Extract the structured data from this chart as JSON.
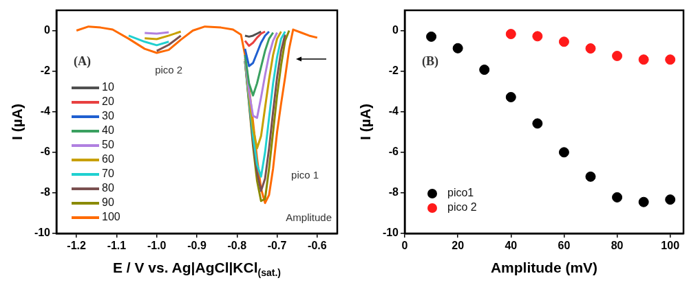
{
  "chart_data": [
    {
      "type": "line",
      "xlabel": "E / V vs. Ag|AgCl|KCl$_{(sat.)}$",
      "ylabel": "I (µA)",
      "x": [
        -1.2,
        -1.17,
        -1.14,
        -1.11,
        -1.07,
        -1.03,
        -1.0,
        -0.97,
        -0.94,
        -0.91,
        -0.88,
        -0.84,
        -0.81,
        -0.79,
        -0.78,
        -0.77,
        -0.76,
        -0.75,
        -0.74,
        -0.73,
        -0.72,
        -0.71,
        -0.7,
        -0.69,
        -0.68,
        -0.67,
        -0.66,
        -0.64,
        -0.62,
        -0.6
      ],
      "series": [
        {
          "name": "10",
          "color": "#505050",
          "values": [
            null,
            null,
            null,
            null,
            null,
            null,
            null,
            null,
            null,
            null,
            null,
            null,
            null,
            null,
            -0.25,
            -0.3,
            -0.25,
            -0.15,
            -0.05,
            null,
            null,
            null,
            null,
            null,
            null,
            null,
            null,
            null,
            null,
            null
          ]
        },
        {
          "name": "20",
          "color": "#e84040",
          "values": [
            null,
            null,
            null,
            null,
            null,
            null,
            null,
            null,
            null,
            null,
            null,
            null,
            null,
            null,
            -0.5,
            -0.75,
            -0.6,
            -0.35,
            -0.15,
            -0.05,
            null,
            null,
            null,
            null,
            null,
            null,
            null,
            null,
            null,
            null
          ]
        },
        {
          "name": "30",
          "color": "#1f5fd0",
          "values": [
            null,
            null,
            null,
            null,
            null,
            null,
            null,
            null,
            null,
            null,
            null,
            null,
            null,
            null,
            -0.9,
            -1.75,
            -1.6,
            -1.1,
            -0.6,
            -0.25,
            -0.05,
            null,
            null,
            null,
            null,
            null,
            null,
            null,
            null,
            null
          ]
        },
        {
          "name": "40",
          "color": "#3aa060",
          "values": [
            null,
            null,
            null,
            null,
            null,
            null,
            null,
            null,
            null,
            null,
            null,
            null,
            null,
            null,
            -1.2,
            -2.6,
            -3.2,
            -2.6,
            -1.8,
            -1,
            -0.4,
            -0.1,
            null,
            null,
            null,
            null,
            null,
            null,
            null,
            null
          ]
        },
        {
          "name": "50",
          "color": "#b080e0",
          "values": [
            null,
            null,
            null,
            null,
            null,
            -0.12,
            -0.15,
            -0.08,
            null,
            null,
            null,
            null,
            null,
            null,
            -1.3,
            -3,
            -4.2,
            -4.3,
            -3.3,
            -2.2,
            -1.2,
            -0.5,
            -0.1,
            null,
            null,
            null,
            null,
            null,
            null,
            null
          ]
        },
        {
          "name": "60",
          "color": "#c8a000",
          "values": [
            null,
            null,
            null,
            null,
            null,
            -0.38,
            -0.42,
            -0.25,
            -0.05,
            null,
            null,
            null,
            null,
            null,
            -1.4,
            -3.2,
            -4.8,
            -5.8,
            -5.2,
            -3.8,
            -2.4,
            -1.2,
            -0.4,
            -0.05,
            null,
            null,
            null,
            null,
            null,
            null
          ]
        },
        {
          "name": "70",
          "color": "#20d0d0",
          "values": [
            null,
            null,
            null,
            null,
            -0.25,
            -0.55,
            -0.72,
            -0.55,
            null,
            null,
            null,
            null,
            null,
            null,
            -1.5,
            -3.4,
            -5.2,
            -6.6,
            -7.2,
            -6,
            -4.3,
            -2.6,
            -1.3,
            -0.4,
            -0.05,
            null,
            null,
            null,
            null,
            null
          ]
        },
        {
          "name": "80",
          "color": "#7a5050",
          "values": [
            null,
            null,
            null,
            null,
            null,
            null,
            -1,
            -0.7,
            -0.25,
            null,
            null,
            null,
            null,
            null,
            -1.5,
            -3.5,
            -5.5,
            -7,
            -7.9,
            -7.3,
            -5.8,
            -4,
            -2.3,
            -1,
            -0.2,
            null,
            null,
            null,
            null,
            null
          ]
        },
        {
          "name": "90",
          "color": "#8a8a00",
          "values": [
            null,
            null,
            null,
            null,
            null,
            null,
            null,
            null,
            null,
            null,
            null,
            null,
            null,
            null,
            -1.5,
            -3.6,
            -5.7,
            -7.4,
            -8.4,
            -8.3,
            -6.8,
            -5,
            -3.2,
            -1.7,
            -0.5,
            0,
            null,
            null,
            null,
            null
          ]
        },
        {
          "name": "100",
          "color": "#ff6a00",
          "values": [
            0,
            0.2,
            0.15,
            0.05,
            -0.4,
            -0.9,
            -1.1,
            -0.95,
            -0.45,
            0,
            0.2,
            0.15,
            0.05,
            -0.2,
            -1.2,
            -2.8,
            -4.5,
            -6.3,
            -7.8,
            -8.5,
            -8.1,
            -6.8,
            -5,
            -3.6,
            -2.3,
            -0.9,
            0.05,
            -0.1,
            -0.25,
            -0.35
          ]
        }
      ],
      "xlim": [
        -1.25,
        -0.55
      ],
      "xticks": [
        {
          "value": -1.2,
          "label": "-1.2"
        },
        {
          "value": -1.1,
          "label": "-1.1"
        },
        {
          "value": -1,
          "label": "-1.0"
        },
        {
          "value": -0.9,
          "label": "-0.9"
        },
        {
          "value": -0.8,
          "label": "-0.8"
        },
        {
          "value": -0.7,
          "label": "-0.7"
        },
        {
          "value": -0.6,
          "label": "-0.6"
        }
      ],
      "ylim": [
        -10,
        1
      ],
      "yticks": [
        -10,
        -8,
        -6,
        -4,
        -2,
        0
      ],
      "legend": "left",
      "grid": false,
      "annotations": [
        "(A)",
        "Amplitude",
        "pico 2",
        "pico 1"
      ]
    },
    {
      "type": "scatter",
      "xlabel": "Amplitude (mV)",
      "ylabel": "I (µA)",
      "marker": "circle",
      "series": [
        {
          "name": "pico1",
          "color": "#000000",
          "x": [
            10,
            20,
            30,
            40,
            50,
            60,
            70,
            80,
            90,
            100
          ],
          "values": [
            -0.3,
            -0.87,
            -1.93,
            -3.28,
            -4.58,
            -6.0,
            -7.2,
            -8.22,
            -8.45,
            -8.33
          ]
        },
        {
          "name": "pico 2",
          "color": "#ff1a1a",
          "x": [
            40,
            50,
            60,
            70,
            80,
            90,
            100
          ],
          "values": [
            -0.17,
            -0.28,
            -0.55,
            -0.88,
            -1.25,
            -1.43,
            -1.43
          ]
        }
      ],
      "xlim": [
        0,
        105
      ],
      "xticks": [
        0,
        20,
        40,
        60,
        80,
        100
      ],
      "ylim": [
        -10,
        1
      ],
      "yticks": [
        -10,
        -8,
        -6,
        -4,
        -2,
        0
      ],
      "legend": "bottom left",
      "grid": false,
      "annotations": [
        "(B)"
      ]
    }
  ]
}
